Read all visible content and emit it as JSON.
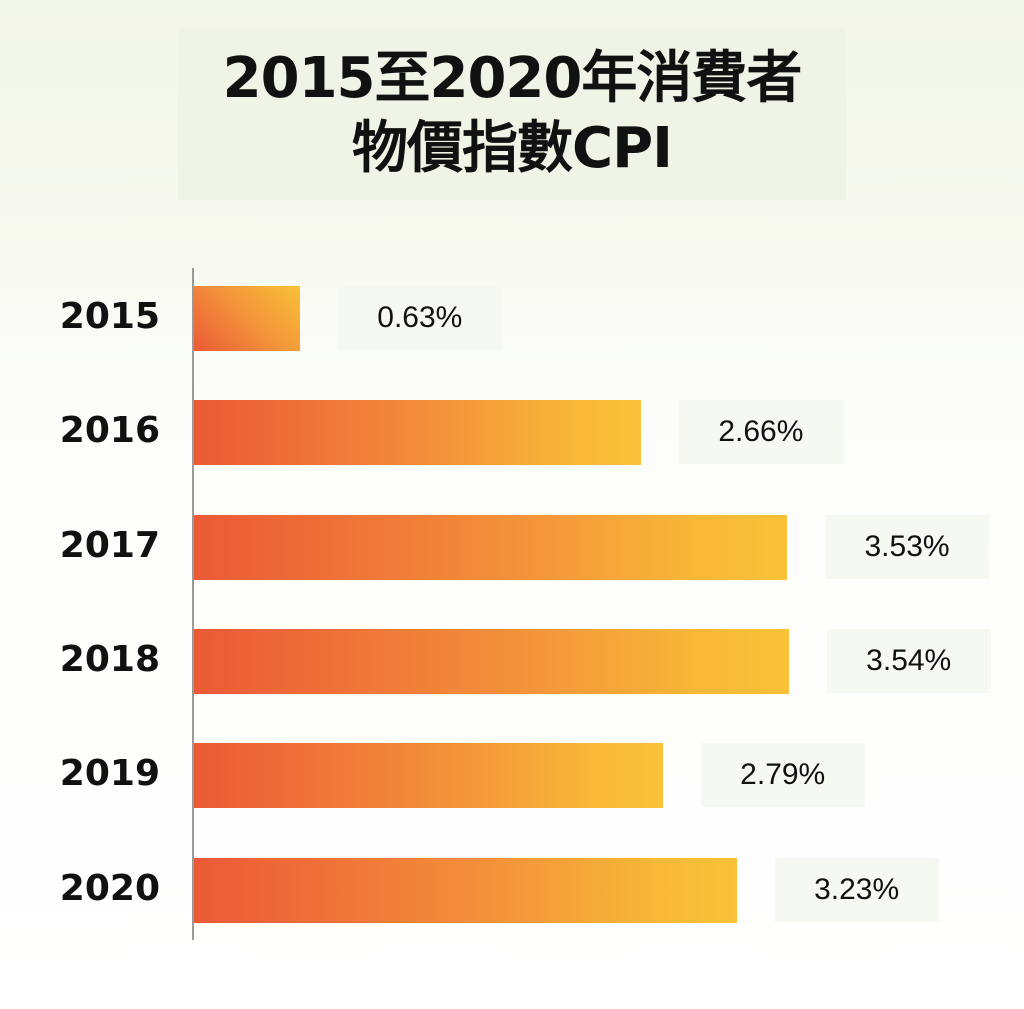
{
  "chart_data": {
    "type": "bar",
    "orientation": "horizontal",
    "title": [
      "2015至2020年消費者",
      "物價指數CPI"
    ],
    "categories": [
      "2015",
      "2016",
      "2017",
      "2018",
      "2019",
      "2020"
    ],
    "values": [
      0.63,
      2.66,
      3.53,
      3.54,
      2.79,
      3.23
    ],
    "data_labels": [
      "0.63%",
      "2.66%",
      "3.53%",
      "3.54%",
      "2.79%",
      "3.23%"
    ],
    "unit": "%",
    "xlim": [
      0,
      4.9
    ],
    "grid": false,
    "bar_gradient": [
      "#ea5a36",
      "#f9c238"
    ]
  }
}
